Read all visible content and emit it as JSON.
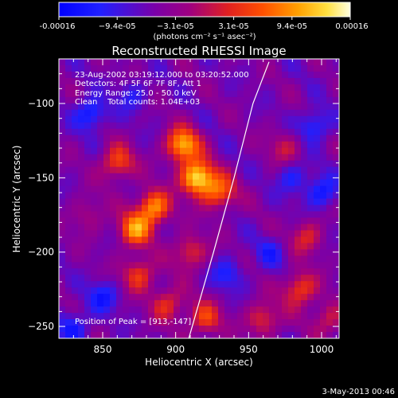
{
  "chart_data": {
    "type": "heatmap",
    "title": "Reconstructed RHESSI Image",
    "xlabel": "Heliocentric X (arcsec)",
    "ylabel": "Heliocentric Y (arcsec)",
    "xlim": [
      820,
      1012
    ],
    "ylim": [
      -258,
      -70
    ],
    "x_ticks": [
      850,
      900,
      950,
      1000
    ],
    "y_ticks": [
      -100,
      -150,
      -200,
      -250
    ],
    "colorbar": {
      "min": -0.00016,
      "max": 0.00016,
      "tick_labels": [
        "-0.00016",
        "−9.4e-05",
        "−3.1e-05",
        "3.1e-05",
        "9.4e-05",
        "0.00016"
      ],
      "unit_label": "(photons cm⁻² s⁻¹ asec⁻²)"
    },
    "annotations": [
      "23-Aug-2002 03:19:12.000 to 03:20:52.000",
      "Detectors: 4F 5F 6F 7F 8F, Att 1",
      "Energy Range: 25.0 - 50.0 keV",
      "Clean    Total counts: 1.04E+03",
      "Position of Peak = [913,-147]"
    ],
    "limb_curve": [
      [
        909,
        -258
      ],
      [
        926,
        -200
      ],
      [
        940,
        -150
      ],
      [
        953,
        -100
      ],
      [
        964,
        -72
      ]
    ],
    "intensity_peaks": [
      [
        915,
        -150,
        1.0
      ],
      [
        905,
        -128,
        0.85
      ],
      [
        885,
        -170,
        0.75
      ],
      [
        872,
        -185,
        0.7
      ],
      [
        860,
        -140,
        0.55
      ],
      [
        930,
        -160,
        0.6
      ],
      [
        875,
        -215,
        0.5
      ],
      [
        910,
        -200,
        0.45
      ],
      [
        895,
        -235,
        0.45
      ],
      [
        920,
        -245,
        0.5
      ],
      [
        985,
        -225,
        0.55
      ],
      [
        990,
        -190,
        0.4
      ],
      [
        960,
        -245,
        0.45
      ],
      [
        1005,
        -245,
        0.35
      ],
      [
        975,
        -130,
        0.3
      ],
      [
        840,
        -175,
        0.25
      ]
    ],
    "intensity_dips": [
      [
        842,
        -107,
        0.9
      ],
      [
        995,
        -115,
        0.8
      ],
      [
        1000,
        -160,
        0.8
      ],
      [
        980,
        -150,
        0.6
      ],
      [
        850,
        -230,
        0.7
      ],
      [
        935,
        -215,
        0.6
      ],
      [
        830,
        -250,
        0.7
      ],
      [
        965,
        -200,
        0.5
      ],
      [
        870,
        -95,
        0.5
      ]
    ]
  },
  "footer": {
    "date": "3-May-2013 00:46"
  }
}
